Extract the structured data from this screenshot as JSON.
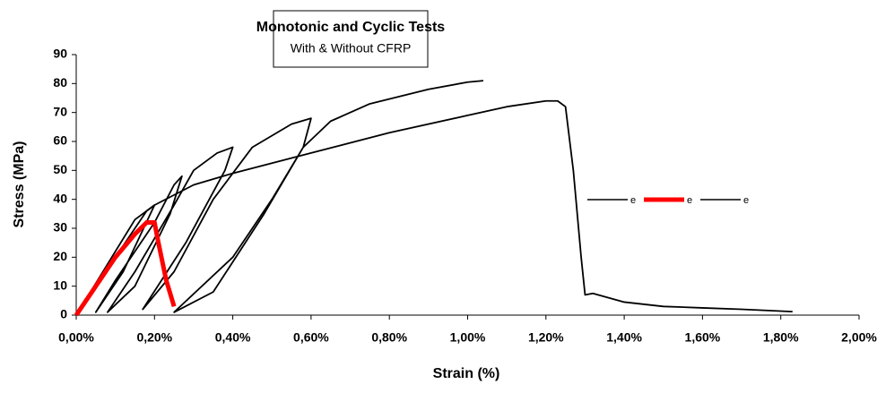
{
  "chart_data": {
    "type": "line",
    "title": "Monotonic and Cyclic Tests",
    "subtitle": "With & Without CFRP",
    "x_label": "Strain (%)",
    "y_label": "Stress (MPa)",
    "xlim": [
      0,
      2
    ],
    "ylim": [
      0,
      90
    ],
    "xticks": [
      {
        "value": 0,
        "label": "0,00%"
      },
      {
        "value": 0.2,
        "label": "0,20%"
      },
      {
        "value": 0.4,
        "label": "0,40%"
      },
      {
        "value": 0.6,
        "label": "0,60%"
      },
      {
        "value": 0.8,
        "label": "0,80%"
      },
      {
        "value": 1.0,
        "label": "1,00%"
      },
      {
        "value": 1.2,
        "label": "1,20%"
      },
      {
        "value": 1.4,
        "label": "1,40%"
      },
      {
        "value": 1.6,
        "label": "1,60%"
      },
      {
        "value": 1.8,
        "label": "1,80%"
      },
      {
        "value": 2.0,
        "label": "2,00%"
      }
    ],
    "yticks": [
      0,
      10,
      20,
      30,
      40,
      50,
      60,
      70,
      80,
      90
    ],
    "grid": false,
    "legend": "right",
    "series": [
      {
        "name": "e",
        "color": "#000000",
        "x": [
          0,
          0.05,
          0.1,
          0.15,
          0.2,
          0.3,
          0.4,
          0.6,
          0.8,
          1.0,
          1.1,
          1.2,
          1.23,
          1.25,
          1.27,
          1.29,
          1.3,
          1.32,
          1.4,
          1.5,
          1.6,
          1.7,
          1.83
        ],
        "values": [
          0,
          11,
          22,
          33,
          38,
          45,
          49,
          56,
          63,
          69,
          72,
          74,
          74,
          72,
          50,
          20,
          7,
          7.5,
          4.5,
          3,
          2.5,
          2,
          1.2
        ]
      },
      {
        "name": "e",
        "color": "#ff0000",
        "x": [
          0,
          0.05,
          0.1,
          0.15,
          0.18,
          0.2,
          0.21,
          0.23,
          0.25
        ],
        "values": [
          0,
          10,
          20,
          28,
          32,
          32,
          25,
          12,
          3
        ]
      },
      {
        "name": "e",
        "color": "#000000",
        "x": [
          0,
          0.1,
          0.18,
          0.2,
          0.12,
          0.05,
          0.1,
          0.2,
          0.25,
          0.27,
          0.24,
          0.15,
          0.08,
          0.15,
          0.25,
          0.3,
          0.36,
          0.4,
          0.38,
          0.28,
          0.17,
          0.25,
          0.35,
          0.45,
          0.55,
          0.6,
          0.58,
          0.48,
          0.35,
          0.25,
          0.4,
          0.5,
          0.58,
          0.65,
          0.75,
          0.9,
          1.0,
          1.04
        ],
        "values": [
          0,
          20,
          36,
          38,
          15,
          1,
          12,
          32,
          45,
          48,
          35,
          10,
          1,
          15,
          38,
          50,
          56,
          58,
          50,
          25,
          2,
          15,
          40,
          58,
          66,
          68,
          58,
          35,
          8,
          1,
          20,
          40,
          58,
          67,
          73,
          78,
          80.5,
          81
        ]
      }
    ]
  }
}
